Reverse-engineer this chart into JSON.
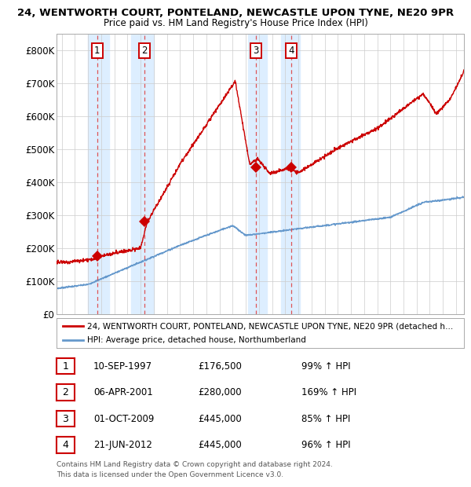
{
  "title_line1": "24, WENTWORTH COURT, PONTELAND, NEWCASTLE UPON TYNE, NE20 9PR",
  "title_line2": "Price paid vs. HM Land Registry's House Price Index (HPI)",
  "ylim": [
    0,
    850000
  ],
  "yticks": [
    0,
    100000,
    200000,
    300000,
    400000,
    500000,
    600000,
    700000,
    800000
  ],
  "ytick_labels": [
    "£0",
    "£100K",
    "£200K",
    "£300K",
    "£400K",
    "£500K",
    "£600K",
    "£700K",
    "£800K"
  ],
  "xlim_start": 1994.6,
  "xlim_end": 2025.6,
  "background_color": "#ffffff",
  "grid_color": "#cccccc",
  "property_color": "#cc0000",
  "hpi_color": "#6699cc",
  "sale_marker_color": "#cc0000",
  "vline_color": "#dd4444",
  "highlight_color": "#ddeeff",
  "legend_property_label": "24, WENTWORTH COURT, PONTELAND, NEWCASTLE UPON TYNE, NE20 9PR (detached h…",
  "legend_hpi_label": "HPI: Average price, detached house, Northumberland",
  "sales": [
    {
      "num": 1,
      "date": "10-SEP-1997",
      "year": 1997.69,
      "price": 176500,
      "pct": "99%",
      "arrow": "↑"
    },
    {
      "num": 2,
      "date": "06-APR-2001",
      "year": 2001.27,
      "price": 280000,
      "pct": "169%",
      "arrow": "↑"
    },
    {
      "num": 3,
      "date": "01-OCT-2009",
      "year": 2009.75,
      "price": 445000,
      "pct": "85%",
      "arrow": "↑"
    },
    {
      "num": 4,
      "date": "21-JUN-2012",
      "year": 2012.47,
      "price": 445000,
      "pct": "96%",
      "arrow": "↑"
    }
  ],
  "sale_x_pairs": [
    [
      1997.0,
      1998.6
    ],
    [
      2000.3,
      2002.0
    ],
    [
      2009.2,
      2010.6
    ],
    [
      2011.7,
      2013.1
    ]
  ],
  "footnote_line1": "Contains HM Land Registry data © Crown copyright and database right 2024.",
  "footnote_line2": "This data is licensed under the Open Government Licence v3.0."
}
